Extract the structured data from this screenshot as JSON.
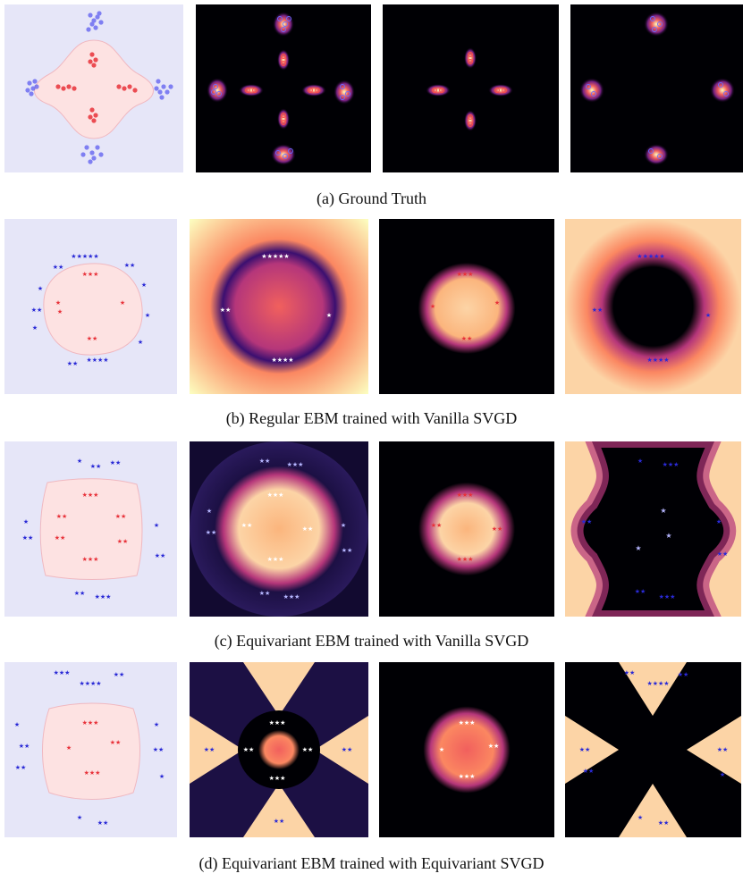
{
  "figure": {
    "rows": [
      {
        "id": "a",
        "caption": "(a) Ground Truth",
        "panels": [
          {
            "kind": "classification",
            "marker": "circle"
          },
          {
            "kind": "energy-both",
            "marker": "circle"
          },
          {
            "kind": "energy-inner",
            "marker": "circle"
          },
          {
            "kind": "energy-outer",
            "marker": "circle"
          }
        ]
      },
      {
        "id": "b",
        "caption": "(b) Regular EBM trained with Vanilla SVGD",
        "panels": [
          {
            "kind": "classification",
            "marker": "star"
          },
          {
            "kind": "energy-both",
            "marker": "star"
          },
          {
            "kind": "energy-inner",
            "marker": "star"
          },
          {
            "kind": "energy-outer",
            "marker": "star"
          }
        ]
      },
      {
        "id": "c",
        "caption": "(c) Equivariant EBM trained with Vanilla SVGD",
        "panels": [
          {
            "kind": "classification",
            "marker": "star"
          },
          {
            "kind": "energy-both",
            "marker": "star"
          },
          {
            "kind": "energy-inner",
            "marker": "star"
          },
          {
            "kind": "energy-outer",
            "marker": "star"
          }
        ]
      },
      {
        "id": "d",
        "caption": "(d) Equivariant EBM trained with Equivariant SVGD",
        "panels": [
          {
            "kind": "classification",
            "marker": "star"
          },
          {
            "kind": "energy-both",
            "marker": "star"
          },
          {
            "kind": "energy-inner",
            "marker": "star"
          },
          {
            "kind": "energy-outer",
            "marker": "star"
          }
        ]
      }
    ],
    "colors": {
      "inner_class": "#e8323a",
      "outer_class": "#2a2ad6",
      "inner_region": "#fde2e2",
      "outer_region": "#e6e6f8",
      "energy_low": "#000004",
      "energy_mid": "#b5367a",
      "energy_high": "#fcfdbf"
    }
  }
}
